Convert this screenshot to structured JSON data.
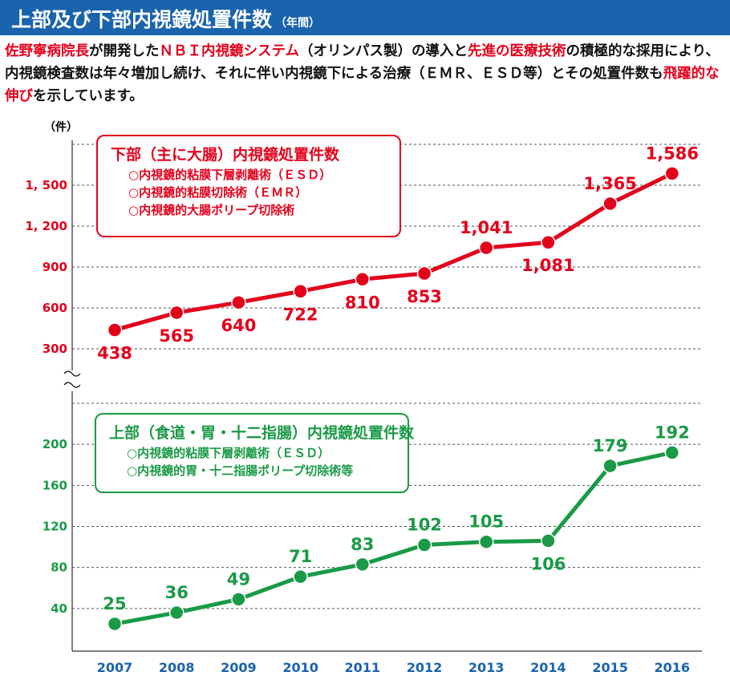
{
  "header": {
    "title": "上部及び下部内視鏡処置件数",
    "title_suffix": "（年間）"
  },
  "intro": {
    "seg1": "佐野寧病院長",
    "seg2": "が開発した",
    "seg3": "ＮＢＩ内視鏡システム",
    "seg4": "（オリンパス製）の導入と",
    "seg5": "先進の医療技術",
    "seg6": "の積極的な採用により、内視鏡検査数は年々増加し続け、それに伴い内視鏡下による治療（ＥＭＲ、ＥＳＤ等）とその処置件数も",
    "seg7": "飛躍的な伸び",
    "seg8": "を示しています。"
  },
  "colors": {
    "header": "#1a63ad",
    "red": "#e3001b",
    "green": "#1a9a46",
    "accent_text": "#1a63ad"
  },
  "chart_data": [
    {
      "type": "line",
      "unit_label": "（件）",
      "title": "下部（主に大腸）内視鏡処置件数",
      "legend_items": [
        "○内視鏡的粘膜下層剥離術（ＥＳＤ）",
        "○内視鏡的粘膜切除術（ＥＭＲ）",
        "○内視鏡的大腸ポリープ切除術"
      ],
      "x": [
        "2007",
        "2008",
        "2009",
        "2010",
        "2011",
        "2012",
        "2013",
        "2014",
        "2015",
        "2016"
      ],
      "values": [
        438,
        565,
        640,
        722,
        810,
        853,
        1041,
        1081,
        1365,
        1586
      ],
      "data_labels": [
        "438",
        "565",
        "640",
        "722",
        "810",
        "853",
        "1,041",
        "1,081",
        "1,365",
        "1,586"
      ],
      "yticks": [
        300,
        600,
        900,
        1200,
        1500
      ],
      "ytick_labels": [
        "300",
        "600",
        "900",
        "1, 200",
        "1, 500"
      ],
      "ylim": [
        0,
        1800
      ],
      "color": "#e3001b",
      "grid": true
    },
    {
      "type": "line",
      "title": "上部（食道・胃・十二指腸）内視鏡処置件数",
      "legend_items": [
        "○内視鏡的粘膜下層剥離術（ＥＳＤ）",
        "○内視鏡的胃・十二指腸ポリープ切除術等"
      ],
      "x": [
        "2007",
        "2008",
        "2009",
        "2010",
        "2011",
        "2012",
        "2013",
        "2014",
        "2015",
        "2016"
      ],
      "values": [
        25,
        36,
        49,
        71,
        83,
        102,
        105,
        106,
        179,
        192
      ],
      "data_labels": [
        "25",
        "36",
        "49",
        "71",
        "83",
        "102",
        "105",
        "106",
        "179",
        "192"
      ],
      "yticks": [
        40,
        80,
        120,
        160,
        200
      ],
      "ytick_labels": [
        "40",
        "80",
        "120",
        "160",
        "200"
      ],
      "ylim": [
        0,
        240
      ],
      "color": "#1a9a46",
      "grid": true
    }
  ]
}
